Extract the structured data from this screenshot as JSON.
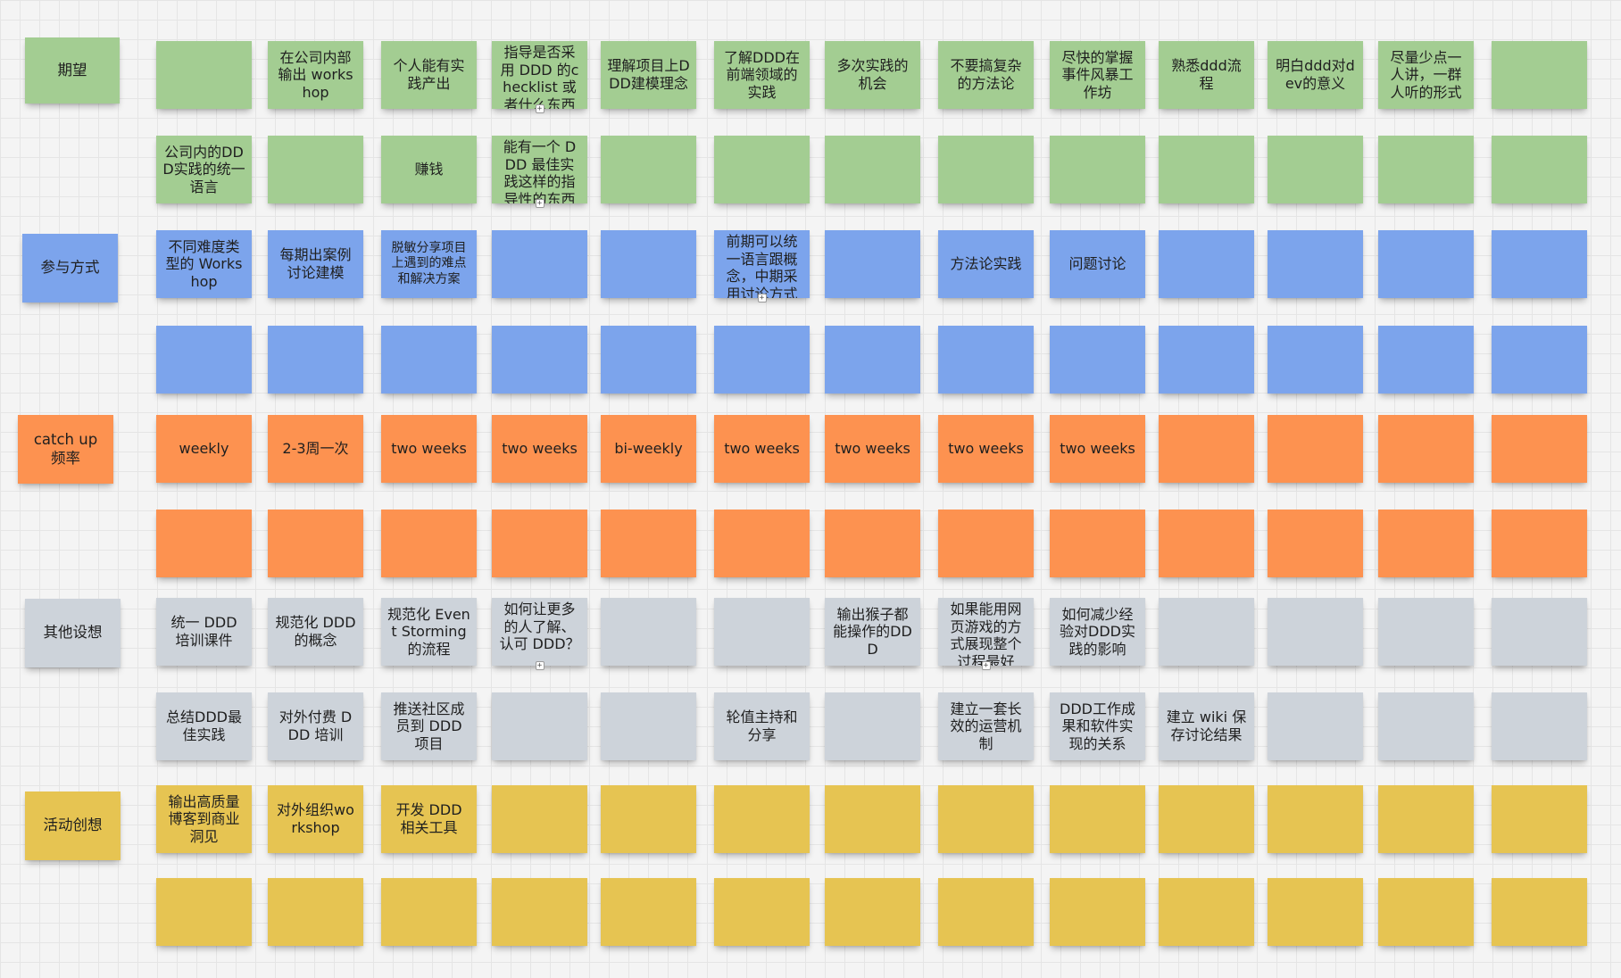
{
  "colors": {
    "green": "#a3cd92",
    "blue": "#7ca4ec",
    "orange": "#fd9250",
    "gray": "#cdd3da",
    "yellow": "#e6c452"
  },
  "expander_symbol": "+",
  "rows": [
    {
      "label": "期望",
      "color": "green",
      "notes": [
        "",
        "在公司内部输出 workshop",
        "个人能有实践产出",
        "指导是否采用 DDD 的checklist 或者什么东西",
        "理解项目上DDD建模理念",
        "了解DDD在前端领域的实践",
        "多次实践的机会",
        "不要搞复杂的方法论",
        "尽快的掌握事件风暴工作坊",
        "熟悉ddd流程",
        "明白ddd对dev的意义",
        "尽量少点一人讲，一群人听的形式",
        ""
      ]
    },
    {
      "label": "",
      "color": "green",
      "notes": [
        "公司内的DDD实践的统一语言",
        "",
        "赚钱",
        "能有一个 DDD 最佳实践这样的指导性的东西",
        "",
        "",
        "",
        "",
        "",
        "",
        "",
        "",
        ""
      ]
    },
    {
      "label": "参与方式",
      "color": "blue",
      "notes": [
        "不同难度类型的 Workshop",
        "每期出案例讨论建模",
        "脱敏分享项目上遇到的难点和解决方案",
        "",
        "",
        "前期可以统一语言跟概念，中期采用讨论方式",
        "",
        "方法论实践",
        "问题讨论",
        "",
        "",
        "",
        ""
      ]
    },
    {
      "label": "",
      "color": "blue",
      "notes": [
        "",
        "",
        "",
        "",
        "",
        "",
        "",
        "",
        "",
        "",
        "",
        "",
        ""
      ]
    },
    {
      "label": "catch up 频率",
      "color": "orange",
      "notes": [
        "weekly",
        "2-3周一次",
        "two weeks",
        "two weeks",
        "bi-weekly",
        "two weeks",
        "two weeks",
        "two weeks",
        "two weeks",
        "",
        "",
        "",
        ""
      ]
    },
    {
      "label": "",
      "color": "orange",
      "notes": [
        "",
        "",
        "",
        "",
        "",
        "",
        "",
        "",
        "",
        "",
        "",
        "",
        ""
      ]
    },
    {
      "label": "其他设想",
      "color": "gray",
      "notes": [
        "统一 DDD 培训课件",
        "规范化 DDD 的概念",
        "规范化 Event Storming 的流程",
        "如何让更多的人了解、认可 DDD？",
        "",
        "",
        "输出猴子都能操作的DDD",
        "如果能用网页游戏的方式展现整个过程最好",
        "如何减少经验对DDD实践的影响",
        "",
        "",
        "",
        ""
      ]
    },
    {
      "label": "",
      "color": "gray",
      "notes": [
        "总结DDD最佳实践",
        "对外付费 DDD 培训",
        "推送社区成员到 DDD 项目",
        "",
        "",
        "轮值主持和分享",
        "",
        "建立一套长效的运营机制",
        "DDD工作成果和软件实现的关系",
        "建立 wiki 保存讨论结果",
        "",
        "",
        ""
      ]
    },
    {
      "label": "活动创想",
      "color": "yellow",
      "notes": [
        "输出高质量博客到商业洞见",
        "对外组织workshop",
        "开发 DDD 相关工具",
        "",
        "",
        "",
        "",
        "",
        "",
        "",
        "",
        "",
        ""
      ]
    },
    {
      "label": "",
      "color": "yellow",
      "notes": [
        "",
        "",
        "",
        "",
        "",
        "",
        "",
        "",
        "",
        "",
        "",
        "",
        ""
      ]
    }
  ]
}
